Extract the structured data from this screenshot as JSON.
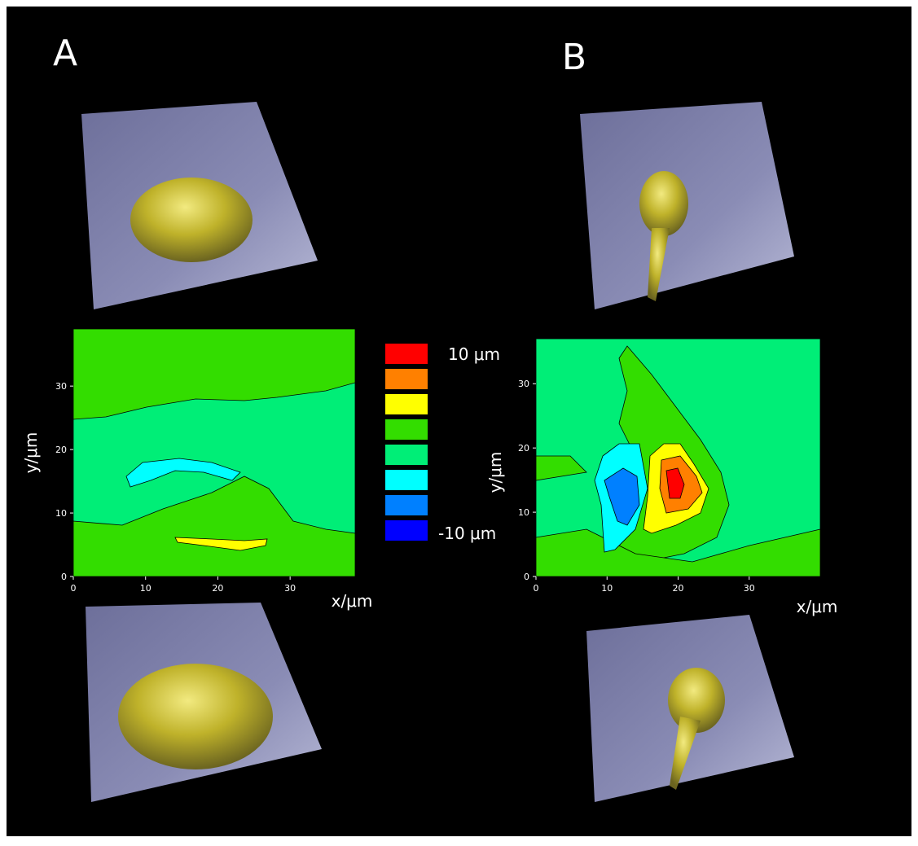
{
  "chart_data": [
    {
      "type": "contour",
      "title": "A",
      "xlabel": "x/μm",
      "ylabel": "y/μm",
      "xlim": [
        0,
        39
      ],
      "ylim": [
        0,
        39
      ],
      "xticks": [
        0,
        10,
        20,
        30
      ],
      "yticks": [
        0,
        10,
        20,
        30
      ]
    },
    {
      "type": "contour",
      "title": "B",
      "xlabel": "x/μm",
      "ylabel": "y/μm",
      "xlim": [
        0,
        40
      ],
      "ylim": [
        0,
        37
      ],
      "xticks": [
        0,
        10,
        20,
        30
      ],
      "yticks": [
        0,
        10,
        20,
        30
      ]
    }
  ],
  "legend": {
    "colors": [
      "#ff0000",
      "#ff8000",
      "#ffff00",
      "#33dd00",
      "#00ee77",
      "#00ffff",
      "#0080ff",
      "#0000ff"
    ],
    "top_label": "10 μm",
    "bottom_label": "-10 μm"
  }
}
